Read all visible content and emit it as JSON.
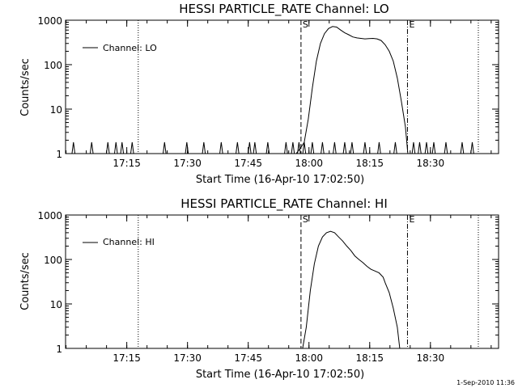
{
  "footer": {
    "timestamp": "1-Sep-2010 11:36"
  },
  "chart_data": [
    {
      "type": "line",
      "title": "HESSI PARTICLE_RATE Channel: LO",
      "xlabel": "Start Time (16-Apr-10 17:02:50)",
      "ylabel": "Counts/sec",
      "yscale": "log",
      "ylim": [
        1,
        1000
      ],
      "xlim_minutes": [
        17.05,
        124.0
      ],
      "x_tick_labels": [
        "17:15",
        "17:30",
        "17:45",
        "18:00",
        "18:15",
        "18:30"
      ],
      "x_tick_values": [
        32.17,
        47.17,
        62.17,
        77.17,
        92.17,
        107.17
      ],
      "y_tick_labels": [
        "1",
        "10",
        "100",
        "1000"
      ],
      "y_tick_values": [
        1,
        10,
        100,
        1000
      ],
      "legend": {
        "position": "top-left",
        "label": "Channel: LO"
      },
      "markers": [
        {
          "label": "S",
          "x": 75.2,
          "style": "dashed"
        },
        {
          "label": "E",
          "x": 101.5,
          "style": "dash-dot"
        }
      ],
      "dotted_lines_x": [
        35.0,
        119.0
      ],
      "spikes_x": [
        19.0,
        23.5,
        27.5,
        29.5,
        31.0,
        33.5,
        41.5,
        47.0,
        51.2,
        55.5,
        59.5,
        62.5,
        63.8,
        67.0,
        71.5,
        73.2,
        74.7,
        76.0,
        78.0,
        80.5,
        83.5,
        86.0,
        87.8,
        91.0,
        94.5,
        98.5,
        103.0,
        104.5,
        106.2,
        108.0,
        111.0,
        115.0,
        117.5
      ],
      "series": [
        {
          "name": "Channel: LO",
          "points": [
            [
              74.0,
              1
            ],
            [
              75.0,
              1.3
            ],
            [
              76.0,
              1.8
            ],
            [
              77.0,
              6
            ],
            [
              78.0,
              30
            ],
            [
              79.0,
              120
            ],
            [
              80.0,
              300
            ],
            [
              81.0,
              500
            ],
            [
              82.0,
              650
            ],
            [
              83.0,
              720
            ],
            [
              84.0,
              700
            ],
            [
              85.0,
              600
            ],
            [
              86.0,
              520
            ],
            [
              87.0,
              470
            ],
            [
              88.0,
              420
            ],
            [
              89.0,
              400
            ],
            [
              90.0,
              390
            ],
            [
              91.0,
              380
            ],
            [
              92.0,
              385
            ],
            [
              93.0,
              390
            ],
            [
              94.0,
              380
            ],
            [
              95.0,
              350
            ],
            [
              96.0,
              280
            ],
            [
              97.0,
              200
            ],
            [
              98.0,
              120
            ],
            [
              99.0,
              50
            ],
            [
              100.0,
              15
            ],
            [
              101.0,
              4
            ],
            [
              101.6,
              1
            ]
          ]
        }
      ]
    },
    {
      "type": "line",
      "title": "HESSI PARTICLE_RATE Channel: HI",
      "xlabel": "Start Time (16-Apr-10 17:02:50)",
      "ylabel": "Counts/sec",
      "yscale": "log",
      "ylim": [
        1,
        1000
      ],
      "xlim_minutes": [
        17.05,
        124.0
      ],
      "x_tick_labels": [
        "17:15",
        "17:30",
        "17:45",
        "18:00",
        "18:15",
        "18:30"
      ],
      "x_tick_values": [
        32.17,
        47.17,
        62.17,
        77.17,
        92.17,
        107.17
      ],
      "y_tick_labels": [
        "1",
        "10",
        "100",
        "1000"
      ],
      "y_tick_values": [
        1,
        10,
        100,
        1000
      ],
      "legend": {
        "position": "top-left",
        "label": "Channel: HI"
      },
      "markers": [
        {
          "label": "S",
          "x": 75.2,
          "style": "dashed"
        },
        {
          "label": "E",
          "x": 101.5,
          "style": "dash-dot"
        }
      ],
      "dotted_lines_x": [
        35.0,
        119.0
      ],
      "spikes_x": [],
      "series": [
        {
          "name": "Channel: HI",
          "points": [
            [
              75.6,
              1
            ],
            [
              76.5,
              3
            ],
            [
              77.5,
              20
            ],
            [
              78.5,
              80
            ],
            [
              79.5,
              200
            ],
            [
              80.5,
              320
            ],
            [
              81.5,
              400
            ],
            [
              82.5,
              430
            ],
            [
              83.5,
              400
            ],
            [
              84.5,
              320
            ],
            [
              85.5,
              260
            ],
            [
              86.5,
              200
            ],
            [
              87.5,
              160
            ],
            [
              88.5,
              120
            ],
            [
              89.5,
              100
            ],
            [
              90.5,
              85
            ],
            [
              91.5,
              70
            ],
            [
              92.5,
              60
            ],
            [
              93.5,
              55
            ],
            [
              94.5,
              50
            ],
            [
              95.5,
              40
            ],
            [
              96.0,
              30
            ],
            [
              97.0,
              18
            ],
            [
              98.0,
              8
            ],
            [
              99.0,
              3
            ],
            [
              99.6,
              1
            ]
          ]
        }
      ]
    }
  ]
}
